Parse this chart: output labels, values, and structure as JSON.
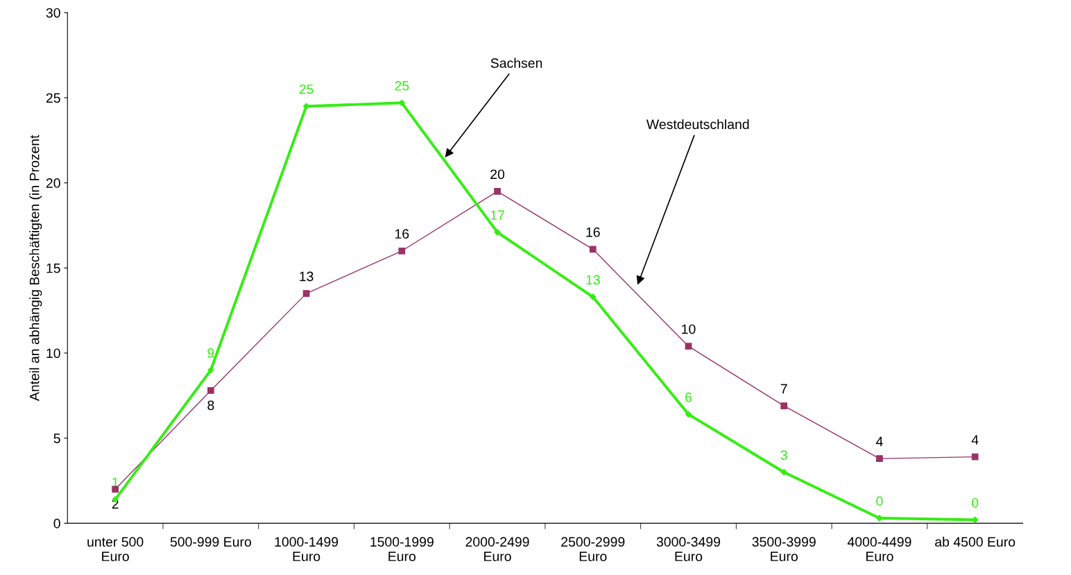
{
  "chart_data": {
    "type": "line",
    "ylabel": "Anteil an abhängig Beschäftigten (in Prozent",
    "categories": [
      "unter 500\nEuro",
      "500-999 Euro",
      "1000-1499\nEuro",
      "1500-1999\nEuro",
      "2000-2499\nEuro",
      "2500-2999\nEuro",
      "3000-3499\nEuro",
      "3500-3999\nEuro",
      "4000-4499\nEuro",
      "ab 4500 Euro"
    ],
    "series": [
      {
        "name": "Sachsen",
        "color": "#33ee11",
        "marker": "diamond",
        "values": [
          1.4,
          9.0,
          24.5,
          24.7,
          17.1,
          13.3,
          6.4,
          3.0,
          0.3,
          0.2
        ],
        "value_labels": [
          "1",
          "9",
          "25",
          "25",
          "17",
          "13",
          "6",
          "3",
          "0",
          "0"
        ]
      },
      {
        "name": "Westdeutschland",
        "color": "#993366",
        "marker": "square",
        "values": [
          2.0,
          7.8,
          13.5,
          16.0,
          19.5,
          16.1,
          10.4,
          6.9,
          3.8,
          3.9
        ],
        "value_labels": [
          "2",
          "8",
          "13",
          "16",
          "20",
          "16",
          "10",
          "7",
          "4",
          "4"
        ]
      }
    ],
    "ylim": [
      0,
      30
    ],
    "yticks": [
      0,
      5,
      10,
      15,
      20,
      25,
      30
    ],
    "grid": false,
    "legend": false,
    "line_style": "solid"
  }
}
